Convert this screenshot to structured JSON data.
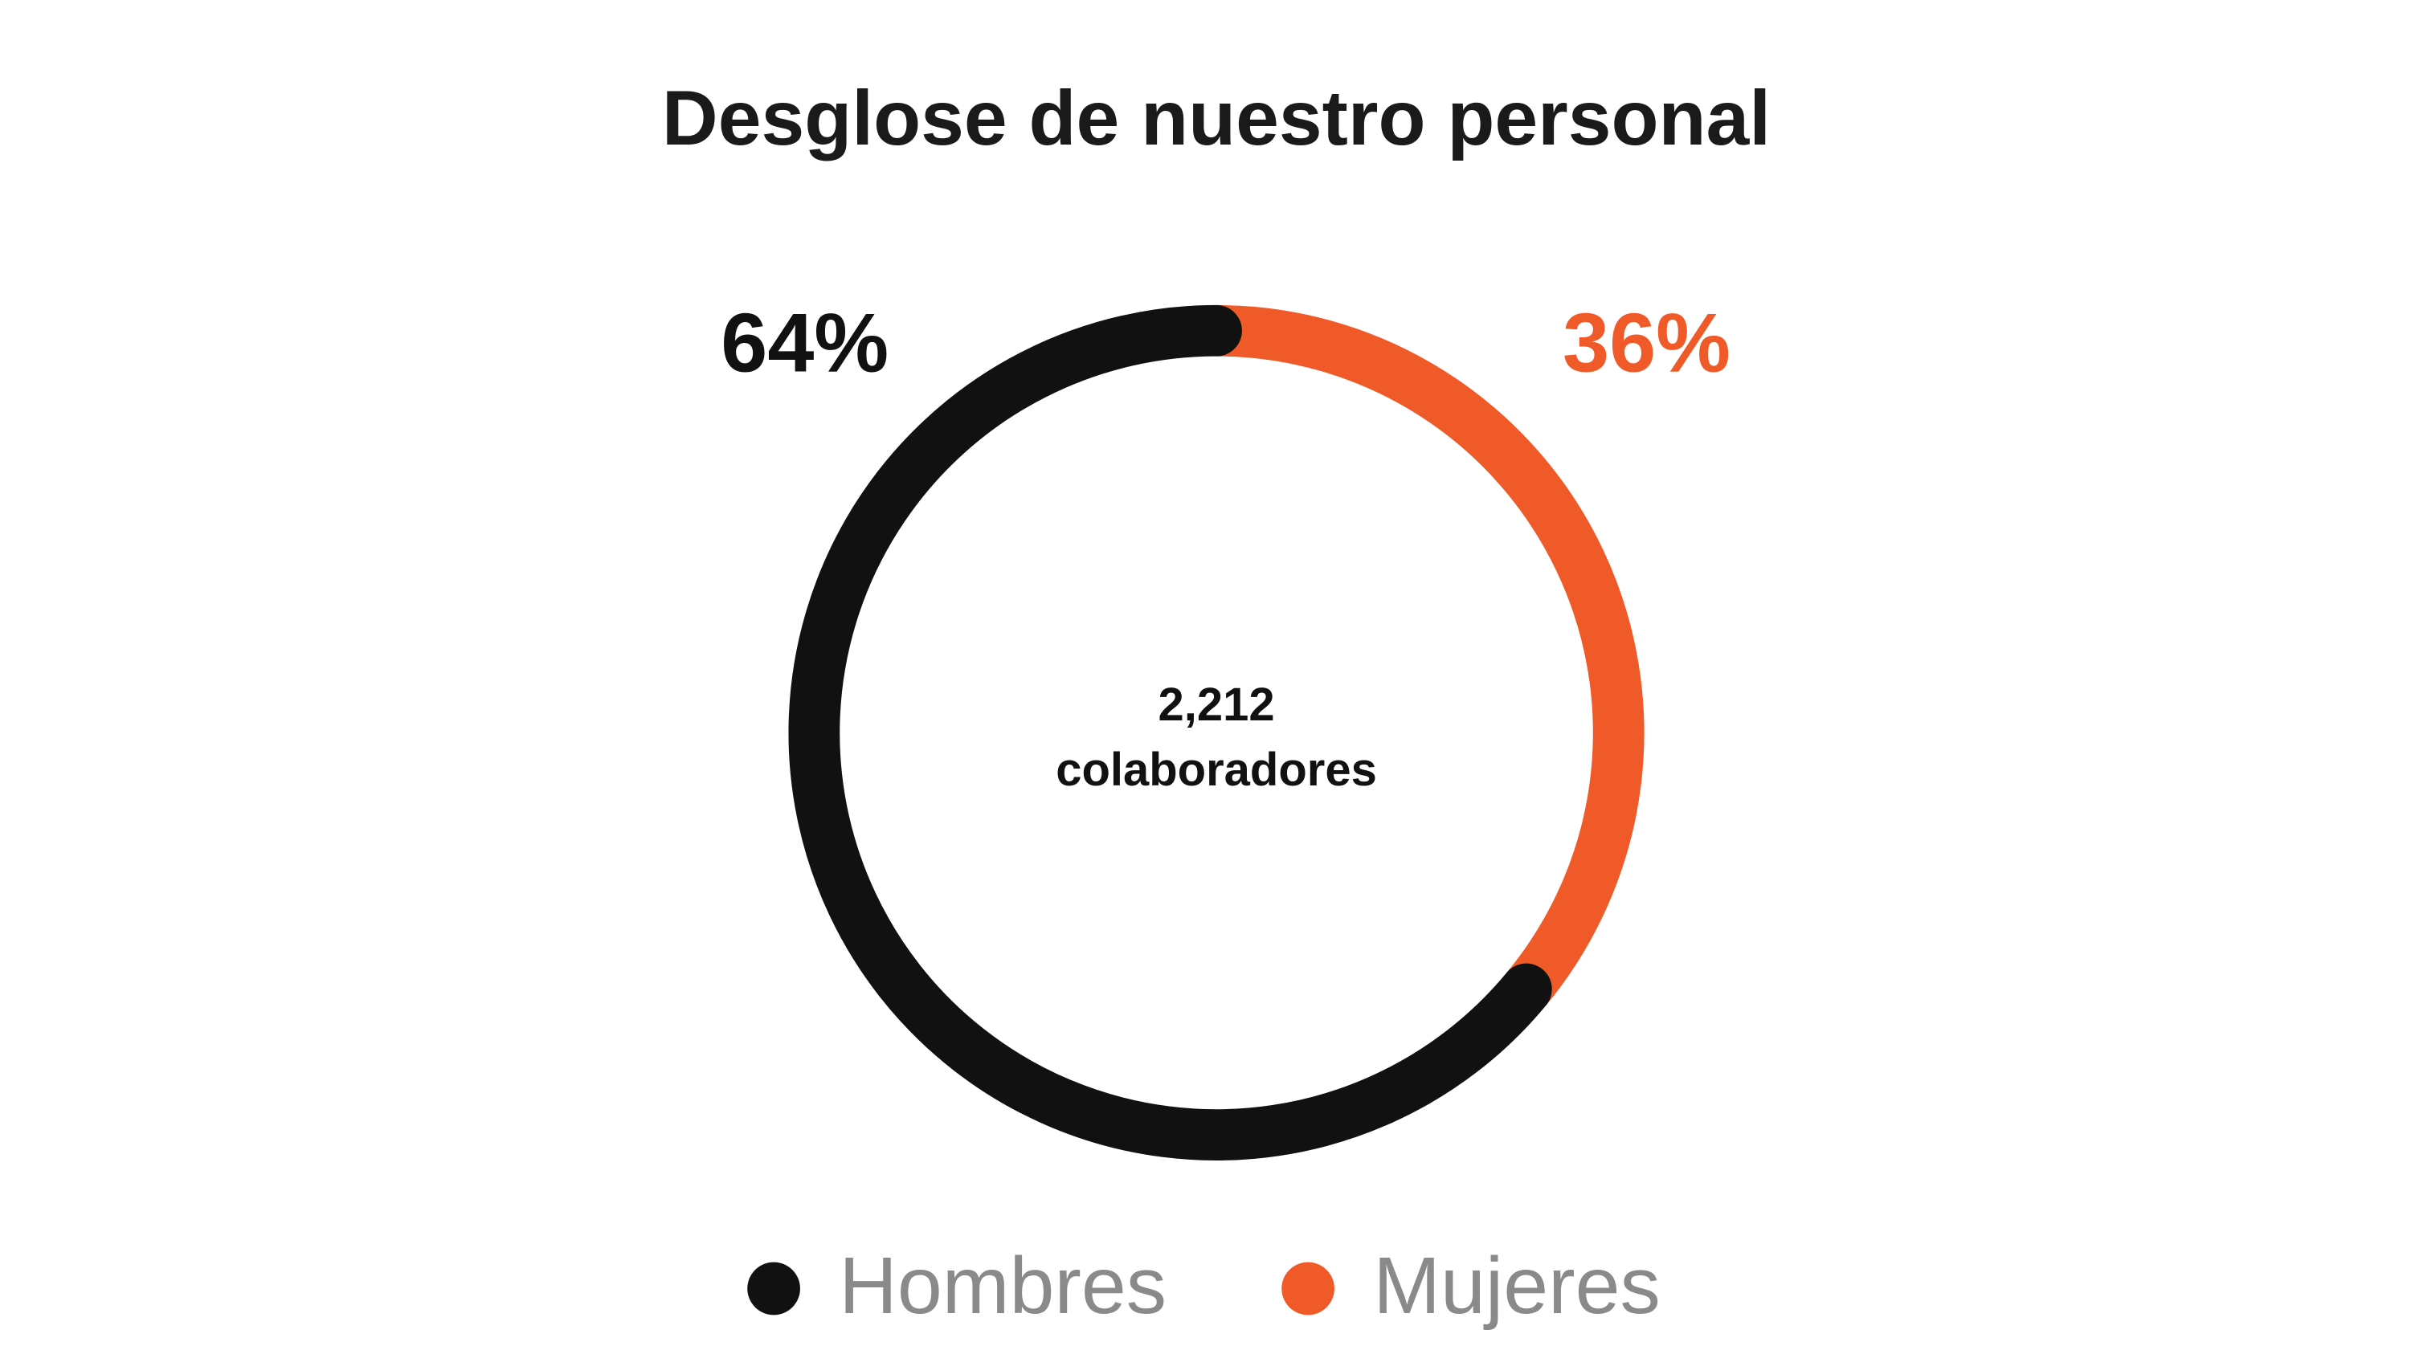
{
  "chart_data": {
    "type": "donut",
    "title": "Desglose de  nuestro personal",
    "categories": [
      "Hombres",
      "Mujeres"
    ],
    "values": [
      64,
      36
    ],
    "value_labels": [
      "64%",
      "36%"
    ],
    "colors": [
      "#111111",
      "#f05a28"
    ],
    "center_text": [
      "2,212",
      "colaboradores"
    ],
    "legend": "bottom"
  }
}
